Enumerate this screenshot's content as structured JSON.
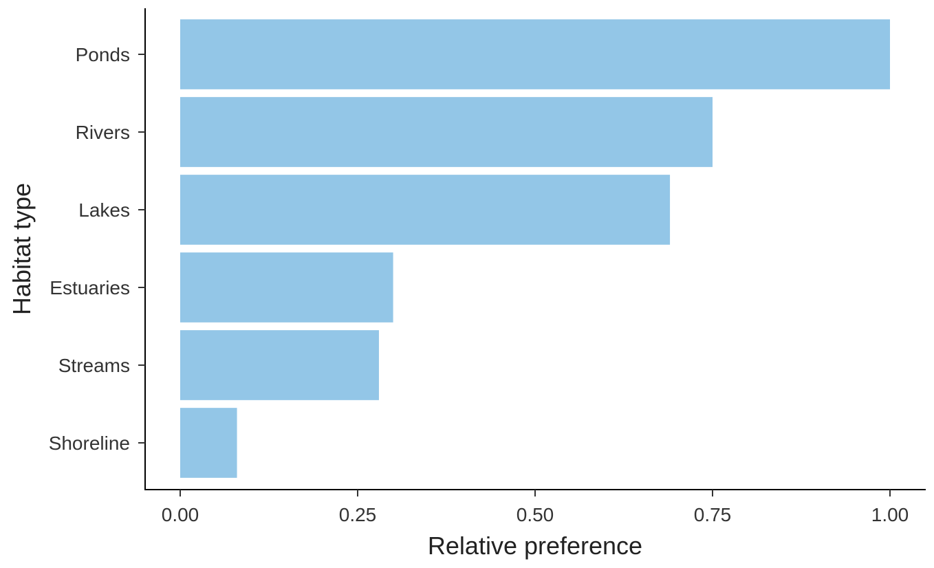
{
  "chart_data": {
    "type": "bar",
    "orientation": "horizontal",
    "categories": [
      "Ponds",
      "Rivers",
      "Lakes",
      "Estuaries",
      "Streams",
      "Shoreline"
    ],
    "values": [
      1.0,
      0.75,
      0.69,
      0.3,
      0.28,
      0.08
    ],
    "xlabel": "Relative preference",
    "ylabel": "Habitat type",
    "xlim": [
      0,
      1
    ],
    "x_ticks": [
      "0.00",
      "0.25",
      "0.50",
      "0.75",
      "1.00"
    ],
    "bar_color": "#93C6E7",
    "grid": false,
    "legend": "none"
  }
}
